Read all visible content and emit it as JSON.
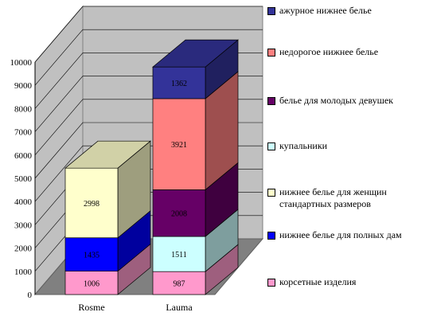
{
  "chart_data": {
    "type": "bar",
    "stacked": true,
    "three_d": true,
    "categories": [
      "Rosme",
      "Lauma"
    ],
    "ylim": [
      0,
      10000
    ],
    "yticks": [
      0,
      1000,
      2000,
      3000,
      4000,
      5000,
      6000,
      7000,
      8000,
      9000,
      10000
    ],
    "grid": true,
    "legend_position": "right",
    "series": [
      {
        "name": "корсетные изделия",
        "color": "#ff99cc",
        "values": [
          1006,
          987
        ],
        "labels": [
          "1006",
          "987"
        ]
      },
      {
        "name": "нижнее белье для полных дам",
        "color": "#0000ff",
        "values": [
          1435,
          0
        ],
        "labels": [
          "1435",
          ""
        ]
      },
      {
        "name": "нижнее белье для женщин стандартных размеров",
        "color": "#ffffcc",
        "values": [
          2998,
          0
        ],
        "labels": [
          "2998",
          ""
        ]
      },
      {
        "name": "купальники",
        "color": "#ccffff",
        "values": [
          0,
          1511
        ],
        "labels": [
          "",
          "1511"
        ]
      },
      {
        "name": "белье для молодых девушек",
        "color": "#660066",
        "values": [
          0,
          2008
        ],
        "labels": [
          "",
          "2008"
        ]
      },
      {
        "name": "недорогое нижнее белье",
        "color": "#ff8080",
        "values": [
          0,
          3921
        ],
        "labels": [
          "",
          "3921"
        ]
      },
      {
        "name": "ажурное нижнее белье",
        "color": "#333399",
        "values": [
          0,
          1362
        ],
        "labels": [
          "",
          "1362"
        ]
      }
    ],
    "legend_order": [
      6,
      5,
      4,
      3,
      2,
      1,
      0
    ]
  }
}
